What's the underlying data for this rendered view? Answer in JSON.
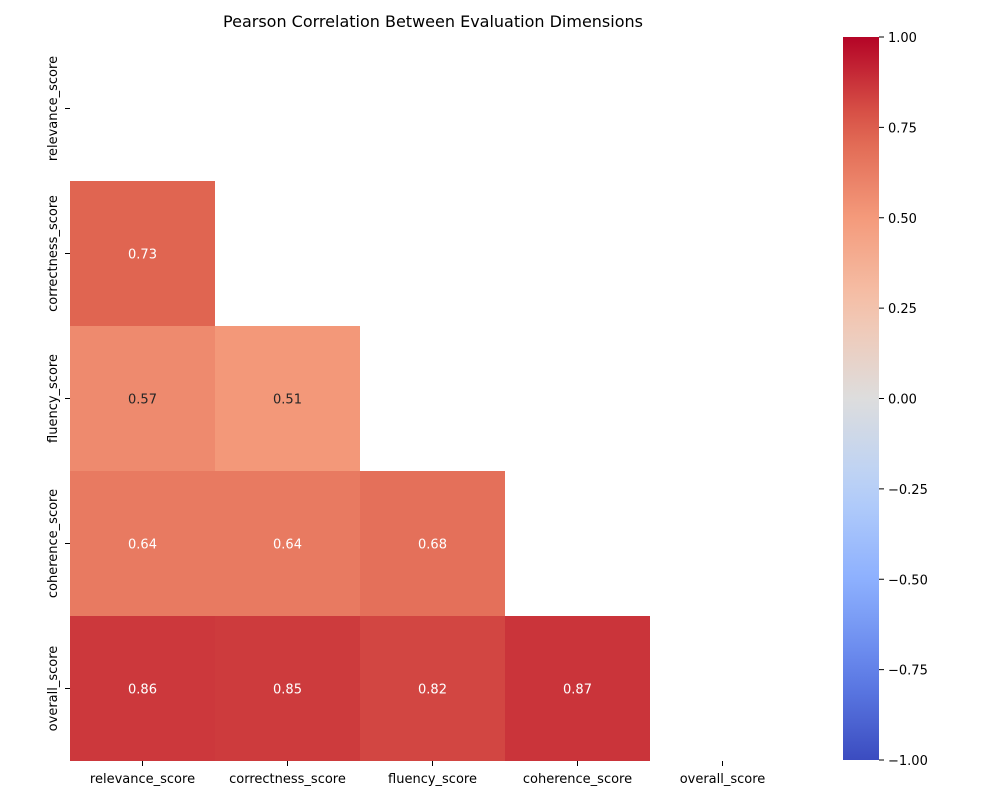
{
  "chart_data": {
    "type": "heatmap",
    "title": "Pearson Correlation Between Evaluation Dimensions",
    "xlabel": "",
    "ylabel": "",
    "x_labels": [
      "relevance_score",
      "correctness_score",
      "fluency_score",
      "coherence_score",
      "overall_score"
    ],
    "y_labels": [
      "relevance_score",
      "correctness_score",
      "fluency_score",
      "coherence_score",
      "overall_score"
    ],
    "mask": "upper-triangle-including-diagonal",
    "values": [
      [
        null,
        null,
        null,
        null,
        null
      ],
      [
        0.73,
        null,
        null,
        null,
        null
      ],
      [
        0.57,
        0.51,
        null,
        null,
        null
      ],
      [
        0.64,
        0.64,
        0.68,
        null,
        null
      ],
      [
        0.86,
        0.85,
        0.82,
        0.87,
        null
      ]
    ],
    "cell_labels": [
      [
        null,
        null,
        null,
        null,
        null
      ],
      [
        "0.73",
        null,
        null,
        null,
        null
      ],
      [
        "0.57",
        "0.51",
        null,
        null,
        null
      ],
      [
        "0.64",
        "0.64",
        "0.68",
        null,
        null
      ],
      [
        "0.86",
        "0.85",
        "0.82",
        "0.87",
        null
      ]
    ],
    "colormap": "coolwarm",
    "colorbar": {
      "range": [
        -1.0,
        1.0
      ],
      "ticks": [
        1.0,
        0.75,
        0.5,
        0.25,
        0.0,
        -0.25,
        -0.5,
        -0.75,
        -1.0
      ],
      "tick_labels": [
        "1.00",
        "0.75",
        "0.50",
        "0.25",
        "0.00",
        "−0.25",
        "−0.50",
        "−0.75",
        "−1.00"
      ]
    },
    "legend": "colorbar-right",
    "grid": false
  }
}
